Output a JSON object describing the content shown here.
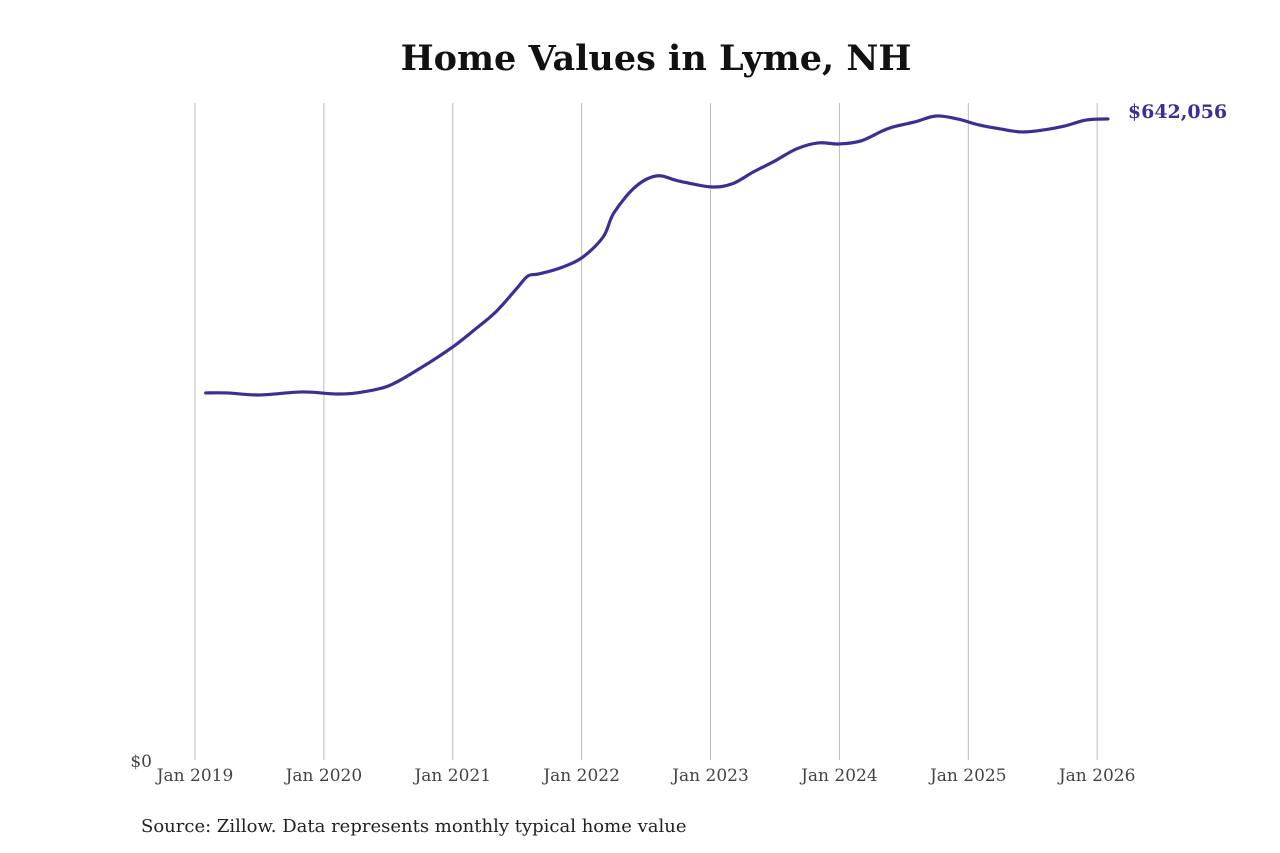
{
  "chart_data": {
    "type": "line",
    "title": "Home Values in Lyme, NH",
    "source": "Source: Zillow. Data represents monthly typical home value",
    "xlabel": "",
    "ylabel": "",
    "x_tick_labels": [
      "Jan 2019",
      "Jan 2020",
      "Jan 2021",
      "Jan 2022",
      "Jan 2023",
      "Jan 2024",
      "Jan 2025",
      "Jan 2026"
    ],
    "y_tick_labels": [
      "$0"
    ],
    "ylim": [
      0,
      658000
    ],
    "grid": "vertical lines at x ticks",
    "line_color": "#3a2f96",
    "end_label": "$642,056",
    "series": [
      {
        "x": [
          "2019-02",
          "2019-04",
          "2019-07",
          "2019-11",
          "2020-02",
          "2020-04",
          "2020-07",
          "2020-10",
          "2021-01",
          "2021-03",
          "2021-05",
          "2021-07",
          "2021-08",
          "2021-09",
          "2021-11",
          "2022-01",
          "2022-03",
          "2022-04",
          "2022-06",
          "2022-08",
          "2022-10",
          "2023-01",
          "2023-03",
          "2023-05",
          "2023-07",
          "2023-09",
          "2023-11",
          "2024-01",
          "2024-03",
          "2024-05",
          "2024-06",
          "2024-08",
          "2024-10",
          "2024-12",
          "2025-02",
          "2025-04",
          "2025-06",
          "2025-08",
          "2025-10",
          "2025-12",
          "2026-02"
        ],
        "values": [
          367600,
          367600,
          365600,
          368600,
          366600,
          367600,
          374600,
          392600,
          413700,
          430700,
          448700,
          472800,
          484800,
          486800,
          492800,
          502800,
          523800,
          547900,
          574000,
          585000,
          580000,
          574000,
          577000,
          589000,
          600000,
          612000,
          618000,
          617000,
          620000,
          630000,
          634000,
          639000,
          645000,
          642000,
          636000,
          632000,
          629000,
          631000,
          635000,
          641000,
          642056
        ]
      }
    ]
  }
}
